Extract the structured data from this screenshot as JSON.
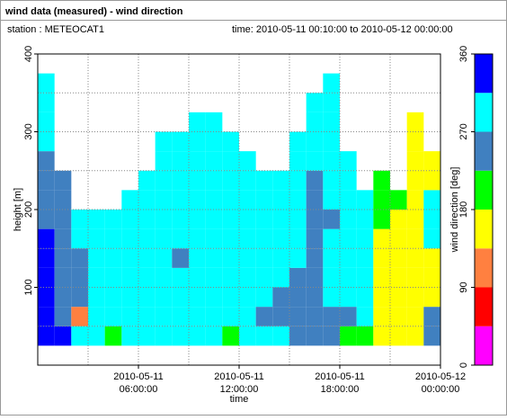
{
  "header": {
    "title": "wind data (measured) - wind direction",
    "station": "station : METEOCAT1",
    "time": "time: 2010-05-11 00:10:00 to 2010-05-12 00:00:00"
  },
  "chart_data": {
    "type": "heatmap",
    "x_label": "time",
    "y_label": "height [m]",
    "xlim": [
      0,
      24
    ],
    "ylim": [
      0,
      400
    ],
    "xticks": [
      {
        "value": 6,
        "label": "06:00:00"
      },
      {
        "value": 12,
        "label": "12:00:00"
      },
      {
        "value": 18,
        "label": "18:00:00"
      },
      {
        "value": 24,
        "label": "00:00:00"
      }
    ],
    "xtick_dates": [
      "2010-05-11",
      "2010-05-11",
      "2010-05-11",
      "2010-05-12"
    ],
    "xgrid": [
      3,
      6,
      9,
      12,
      15,
      18,
      21
    ],
    "yticks": [
      100,
      200,
      300,
      400
    ],
    "ygrid": [
      50,
      100,
      150,
      200,
      250,
      300,
      350
    ],
    "x": [
      0.5,
      1.5,
      2.5,
      3.5,
      4.5,
      5.5,
      6.5,
      7.5,
      8.5,
      9.5,
      10.5,
      11.5,
      12.5,
      13.5,
      14.5,
      15.5,
      16.5,
      17.5,
      18.5,
      19.5,
      20.5,
      21.5,
      22.5,
      23.5
    ],
    "y": [
      37.5,
      62.5,
      87.5,
      112.5,
      137.5,
      162.5,
      187.5,
      212.5,
      237.5,
      262.5,
      287.5,
      312.5,
      337.5,
      362.5
    ],
    "z": [
      [
        340,
        340,
        340,
        340,
        340,
        340,
        250,
        250,
        250,
        250,
        290,
        290,
        290,
        290
      ],
      [
        340,
        250,
        250,
        250,
        250,
        250,
        250,
        250,
        250,
        null,
        null,
        null,
        null,
        null
      ],
      [
        290,
        110,
        250,
        250,
        250,
        290,
        290,
        null,
        null,
        null,
        null,
        null,
        null,
        null
      ],
      [
        290,
        290,
        290,
        290,
        290,
        290,
        290,
        null,
        null,
        null,
        null,
        null,
        null,
        null
      ],
      [
        200,
        290,
        290,
        290,
        290,
        290,
        290,
        null,
        null,
        null,
        null,
        null,
        null,
        null
      ],
      [
        290,
        290,
        290,
        290,
        290,
        290,
        290,
        290,
        null,
        null,
        null,
        null,
        null,
        null
      ],
      [
        290,
        290,
        290,
        290,
        290,
        290,
        290,
        290,
        290,
        null,
        null,
        null,
        null,
        null
      ],
      [
        290,
        290,
        290,
        290,
        290,
        290,
        290,
        290,
        290,
        290,
        290,
        null,
        null,
        null
      ],
      [
        290,
        290,
        290,
        290,
        250,
        290,
        290,
        290,
        290,
        290,
        290,
        null,
        null,
        null
      ],
      [
        290,
        290,
        290,
        290,
        290,
        290,
        290,
        290,
        290,
        290,
        290,
        290,
        null,
        null
      ],
      [
        290,
        290,
        290,
        290,
        290,
        290,
        290,
        290,
        290,
        290,
        290,
        290,
        null,
        null
      ],
      [
        200,
        290,
        290,
        290,
        290,
        290,
        290,
        290,
        290,
        290,
        290,
        null,
        null,
        null
      ],
      [
        290,
        290,
        290,
        290,
        290,
        290,
        290,
        290,
        290,
        290,
        null,
        null,
        null,
        null
      ],
      [
        290,
        250,
        290,
        290,
        290,
        290,
        290,
        290,
        290,
        null,
        null,
        null,
        null,
        null
      ],
      [
        290,
        250,
        250,
        290,
        290,
        290,
        290,
        290,
        290,
        null,
        null,
        null,
        null,
        null
      ],
      [
        250,
        250,
        250,
        250,
        290,
        290,
        290,
        290,
        290,
        290,
        290,
        null,
        null,
        null
      ],
      [
        250,
        250,
        250,
        250,
        250,
        250,
        250,
        250,
        250,
        290,
        290,
        290,
        290,
        null
      ],
      [
        250,
        250,
        290,
        290,
        290,
        290,
        250,
        290,
        290,
        290,
        290,
        290,
        290,
        290
      ],
      [
        200,
        250,
        290,
        290,
        290,
        290,
        290,
        290,
        290,
        290,
        null,
        null,
        null,
        null
      ],
      [
        200,
        290,
        290,
        290,
        290,
        290,
        290,
        290,
        null,
        null,
        null,
        null,
        null,
        null
      ],
      [
        160,
        160,
        160,
        160,
        160,
        160,
        200,
        200,
        200,
        null,
        null,
        null,
        null,
        null
      ],
      [
        160,
        160,
        160,
        160,
        160,
        160,
        160,
        200,
        null,
        null,
        null,
        null,
        null,
        null
      ],
      [
        160,
        160,
        160,
        160,
        160,
        160,
        160,
        160,
        160,
        160,
        160,
        160,
        null,
        null
      ],
      [
        250,
        250,
        160,
        160,
        160,
        290,
        290,
        290,
        160,
        160,
        null,
        null,
        null,
        null
      ]
    ],
    "colorbar": {
      "label": "wind direction [deg]",
      "lim": [
        0,
        360
      ],
      "ticks": [
        0,
        90,
        180,
        270,
        360
      ],
      "bounds": [
        0,
        45,
        90,
        135,
        180,
        225,
        270,
        315,
        360
      ],
      "colors": [
        "#ff00ff",
        "#ff0000",
        "#ff8040",
        "#ffff00",
        "#00ff00",
        "#4080c0",
        "#00ffff",
        "#0000ff"
      ]
    }
  }
}
